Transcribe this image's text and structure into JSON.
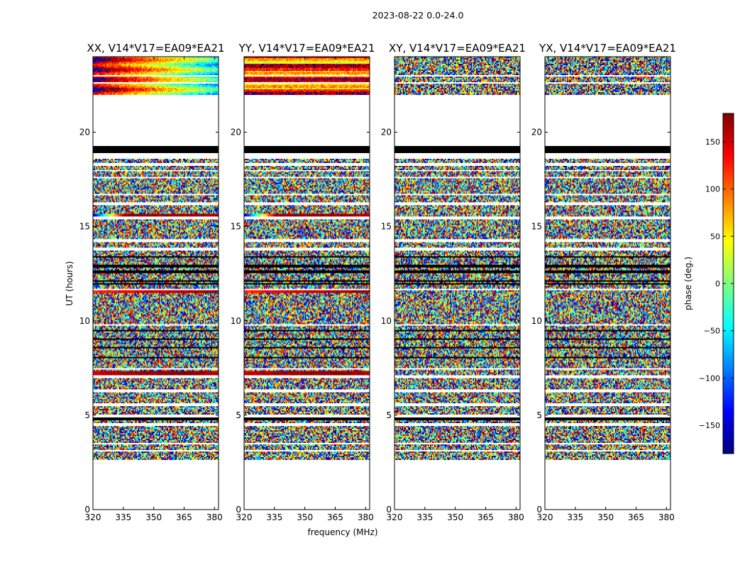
{
  "figure": {
    "suptitle": "2023-08-22 0.0-24.0"
  },
  "chart_data": {
    "type": "heatmap",
    "x_label": "frequency (MHz)",
    "y_label": "UT (hours)",
    "xlim": [
      320,
      382
    ],
    "ylim": [
      0,
      24
    ],
    "x_ticks": [
      320,
      335,
      350,
      365,
      380
    ],
    "y_ticks": [
      0,
      5,
      10,
      15,
      20
    ],
    "colorbar": {
      "label": "phase (deg.)",
      "range": [
        -180,
        180
      ],
      "ticks": [
        150,
        100,
        50,
        0,
        -50,
        -100,
        -150
      ],
      "colormap": "jet",
      "colors": [
        "#00007f",
        "#0000ff",
        "#007fff",
        "#00ffff",
        "#7fff7f",
        "#ffff00",
        "#ff7f00",
        "#ff0000",
        "#7f0000"
      ]
    },
    "panels": [
      {
        "title": "XX, V14*V17=EA09*EA21",
        "polarization": "XX"
      },
      {
        "title": "YY, V14*V17=EA09*EA21",
        "polarization": "YY"
      },
      {
        "title": "XY, V14*V17=EA09*EA21",
        "polarization": "XY"
      },
      {
        "title": "YX, V14*V17=EA09*EA21",
        "polarization": "YX"
      }
    ],
    "data_coverage_ut": [
      [
        2.6,
        18.6
      ],
      [
        18.9,
        19.3
      ],
      [
        22.0,
        24.0
      ]
    ],
    "flagged_ut": [
      [
        0.0,
        2.6
      ],
      [
        19.3,
        22.0
      ]
    ],
    "black_rows_ut": [
      18.95,
      19.15,
      13.4,
      12.9,
      12.6,
      12.1,
      11.95,
      9.5,
      9.05,
      8.6,
      8.05,
      4.8
    ],
    "white_rows_ut": [
      18.3,
      17.95,
      17.6,
      16.7,
      16.2,
      15.45,
      14.25,
      13.8,
      11.65,
      9.8,
      7.45,
      7.05,
      6.3,
      5.55,
      4.95,
      4.5,
      3.5,
      3.1,
      23.0,
      22.6
    ],
    "coherent_rows": [
      {
        "ut": 15.6,
        "values_deg": [
          -150,
          170,
          170,
          170,
          160
        ]
      },
      {
        "ut": 11.6,
        "values_deg": [
          120,
          140,
          150,
          160,
          170
        ]
      },
      {
        "ut": 7.25,
        "values_deg": [
          150,
          170,
          170,
          180,
          160
        ]
      }
    ]
  }
}
